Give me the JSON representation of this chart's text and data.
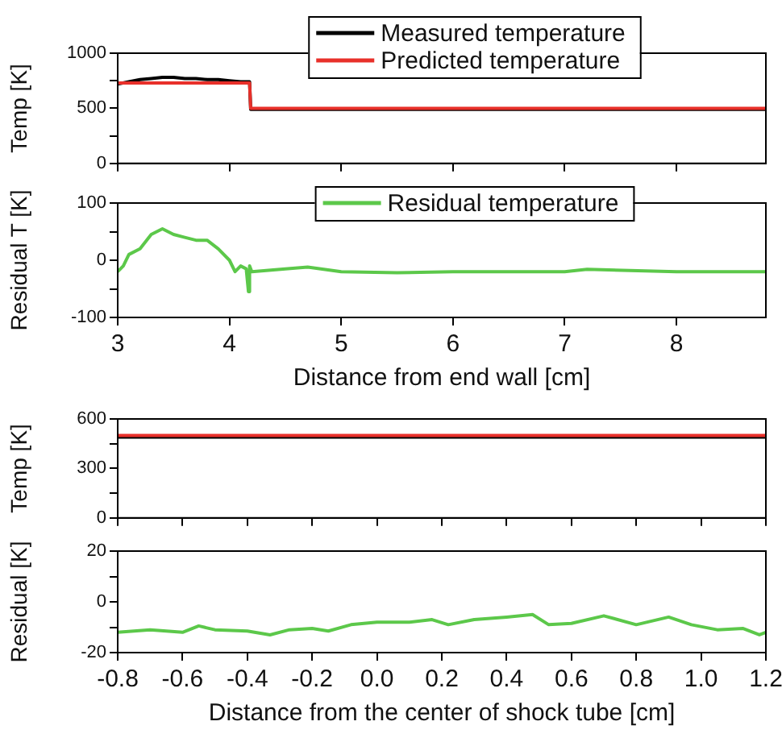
{
  "chart_data": [
    {
      "type": "line",
      "ylabel": "Temp [K]",
      "xlim": [
        3,
        8.8
      ],
      "xticks": [
        3,
        4,
        5,
        6,
        7,
        8
      ],
      "ylim": [
        0,
        1000
      ],
      "yticks": [
        0,
        {
          "value": 250,
          "label": null
        },
        500,
        {
          "value": 750,
          "label": null
        },
        1000
      ],
      "legend": "top",
      "tick_labels": "y",
      "series": [
        {
          "name": "Measured temperature",
          "color": "#000000",
          "x": [
            3,
            3.1,
            3.2,
            3.3,
            3.4,
            3.5,
            3.6,
            3.7,
            3.8,
            3.9,
            4.0,
            4.1,
            4.18,
            4.19,
            4.5,
            5,
            6,
            7,
            8,
            8.8
          ],
          "values": [
            720,
            740,
            760,
            770,
            780,
            780,
            770,
            770,
            760,
            760,
            750,
            740,
            740,
            490,
            490,
            490,
            490,
            490,
            490,
            490
          ]
        },
        {
          "name": "Predicted temperature",
          "color": "#e8302a",
          "x": [
            3,
            4.18,
            4.19,
            8.8
          ],
          "values": [
            730,
            730,
            500,
            500
          ]
        }
      ]
    },
    {
      "type": "line",
      "ylabel": "Residual T [K]",
      "xlabel": "Distance from end wall [cm]",
      "xlim": [
        3,
        8.8
      ],
      "xticks": [
        3,
        4,
        5,
        6,
        7,
        8
      ],
      "ylim": [
        -100,
        100
      ],
      "yticks": [
        -100,
        {
          "value": -50,
          "label": null
        },
        0,
        {
          "value": 50,
          "label": null
        },
        100
      ],
      "legend": "top",
      "series": [
        {
          "name": "Residual temperature",
          "color": "#5cc84a",
          "x": [
            3,
            3.05,
            3.1,
            3.2,
            3.3,
            3.4,
            3.5,
            3.6,
            3.7,
            3.8,
            3.9,
            4.0,
            4.05,
            4.1,
            4.15,
            4.17,
            4.18,
            4.2,
            4.5,
            4.7,
            5,
            5.5,
            6,
            7,
            7.2,
            8,
            8.8
          ],
          "values": [
            -20,
            -10,
            10,
            20,
            45,
            55,
            45,
            40,
            35,
            35,
            20,
            0,
            -20,
            -10,
            -15,
            -55,
            -10,
            -20,
            -15,
            -12,
            -20,
            -22,
            -20,
            -20,
            -16,
            -20,
            -20
          ]
        }
      ]
    },
    {
      "type": "line",
      "ylabel": "Temp [K]",
      "xlim": [
        -0.8,
        1.2
      ],
      "xticks": [
        -0.8,
        -0.6,
        -0.4,
        -0.2,
        0,
        0.2,
        0.4,
        0.6,
        0.8,
        1,
        1.2
      ],
      "ylim": [
        0,
        600
      ],
      "yticks": [
        0,
        {
          "value": 150,
          "label": null
        },
        300,
        {
          "value": 450,
          "label": null
        },
        600
      ],
      "tick_labels": "y",
      "series": [
        {
          "color": "#000000",
          "x": [
            -0.8,
            0.2,
            1.2
          ],
          "values": [
            490,
            490,
            490
          ]
        },
        {
          "color": "#e8302a",
          "x": [
            -0.8,
            1.2
          ],
          "values": [
            500,
            500
          ]
        }
      ]
    },
    {
      "type": "line",
      "ylabel": "Residual [K]",
      "xlabel": "Distance from the center of shock tube [cm]",
      "xlim": [
        -0.8,
        1.2
      ],
      "xticks": [
        {
          "value": -0.8,
          "label": "-0.8"
        },
        {
          "value": -0.6,
          "label": "-0.6"
        },
        {
          "value": -0.4,
          "label": "-0.4"
        },
        {
          "value": -0.2,
          "label": "-0.2"
        },
        {
          "value": 0,
          "label": "0.0"
        },
        {
          "value": 0.2,
          "label": "0.2"
        },
        {
          "value": 0.4,
          "label": "0.4"
        },
        {
          "value": 0.6,
          "label": "0.6"
        },
        {
          "value": 0.8,
          "label": "0.8"
        },
        {
          "value": 1,
          "label": "1.0"
        },
        {
          "value": 1.2,
          "label": "1.2"
        }
      ],
      "ylim": [
        -20,
        20
      ],
      "yticks": [
        -20,
        {
          "value": -10,
          "label": null
        },
        0,
        {
          "value": 10,
          "label": null
        },
        20
      ],
      "series": [
        {
          "color": "#5cc84a",
          "x": [
            -0.8,
            -0.7,
            -0.6,
            -0.55,
            -0.5,
            -0.4,
            -0.33,
            -0.27,
            -0.2,
            -0.15,
            -0.08,
            0,
            0.1,
            0.17,
            0.22,
            0.3,
            0.4,
            0.48,
            0.53,
            0.6,
            0.7,
            0.8,
            0.9,
            0.97,
            1.05,
            1.13,
            1.18,
            1.2
          ],
          "values": [
            -12,
            -11,
            -12,
            -9.5,
            -11,
            -11.5,
            -13,
            -11,
            -10.5,
            -11.5,
            -9,
            -8,
            -8,
            -7,
            -9,
            -7,
            -6,
            -5,
            -9,
            -8.5,
            -5.5,
            -9,
            -6,
            -9,
            -11,
            -10.5,
            -13,
            -12
          ]
        }
      ]
    }
  ]
}
